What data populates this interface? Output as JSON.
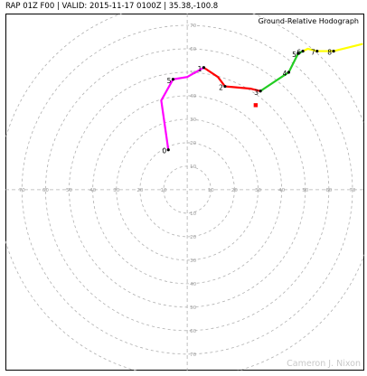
{
  "header": {
    "title": "RAP 01Z F00 | VALID: 2015-11-17 0100Z | 35.38,-100.8"
  },
  "chart_data": {
    "type": "line",
    "title": "Ground-Relative Hodograph",
    "watermark": "Cameron J. Nixon",
    "xlim": [
      -77,
      75
    ],
    "ylim": [
      -77,
      75
    ],
    "ring_step": 10,
    "ring_max": 80,
    "tick_labels": [
      10,
      20,
      30,
      40,
      50,
      60,
      70
    ],
    "grid": true,
    "colors": {
      "axis": "#b0b0b0",
      "ring": "#b0b0b0",
      "tick_text": "#9a9a9a",
      "storm_motion": "#ff0000"
    },
    "series": [
      {
        "color": "#ff00ff",
        "points": [
          [
            -8,
            17
          ],
          [
            -11,
            38
          ],
          [
            -6,
            47
          ],
          [
            0,
            48
          ],
          [
            7,
            52
          ]
        ]
      },
      {
        "color": "#ff0000",
        "points": [
          [
            7,
            52
          ],
          [
            13,
            48
          ],
          [
            16,
            44
          ],
          [
            27,
            43
          ],
          [
            31,
            42
          ]
        ]
      },
      {
        "color": "#22cc22",
        "points": [
          [
            31,
            42
          ],
          [
            43,
            50
          ],
          [
            47,
            58
          ],
          [
            49,
            59
          ]
        ]
      },
      {
        "color": "#ffff00",
        "points": [
          [
            49,
            59
          ],
          [
            51,
            60
          ],
          [
            55,
            59
          ],
          [
            62,
            59
          ],
          [
            74,
            62
          ]
        ]
      }
    ],
    "height_markers": [
      {
        "label": "0",
        "x": -8,
        "y": 17
      },
      {
        "label": "5",
        "x": -6,
        "y": 47
      },
      {
        "label": "1",
        "x": 7,
        "y": 52
      },
      {
        "label": "2",
        "x": 16,
        "y": 44
      },
      {
        "label": "3",
        "x": 31,
        "y": 42
      },
      {
        "label": "4",
        "x": 43,
        "y": 50
      },
      {
        "label": "5",
        "x": 47,
        "y": 58
      },
      {
        "label": "6",
        "x": 49,
        "y": 59
      },
      {
        "label": "7",
        "x": 55,
        "y": 59
      },
      {
        "label": "8",
        "x": 62,
        "y": 59
      }
    ],
    "storm_motion": {
      "x": 29,
      "y": 36
    }
  }
}
